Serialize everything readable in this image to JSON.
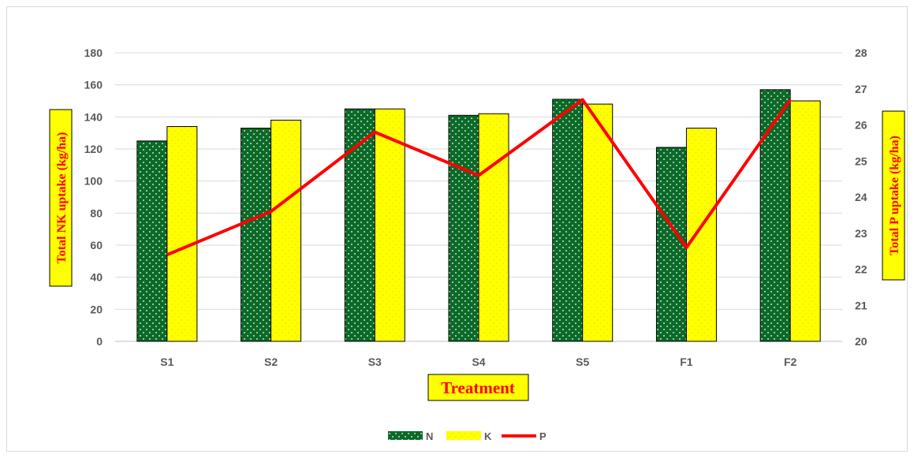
{
  "chart_data": {
    "type": "bar",
    "categories": [
      "S1",
      "S2",
      "S3",
      "S4",
      "S5",
      "F1",
      "F2"
    ],
    "series": [
      {
        "name": "N",
        "type": "bar",
        "axis": "left",
        "color": "#0b6a28",
        "values": [
          125,
          133,
          145,
          141,
          151,
          121,
          157
        ]
      },
      {
        "name": "K",
        "type": "bar",
        "axis": "left",
        "color": "#ffff00",
        "values": [
          134,
          138,
          145,
          142,
          148,
          133,
          150
        ]
      },
      {
        "name": "P",
        "type": "line",
        "axis": "right",
        "color": "#ff0000",
        "values": [
          22.4,
          23.6,
          25.8,
          24.6,
          26.7,
          22.6,
          26.7
        ]
      }
    ],
    "xlabel": "Treatment",
    "ylabel": "Total NK uptake (kg/ha)",
    "y2label": "Total P uptake (kg/ha)",
    "ylim": [
      0,
      180
    ],
    "y2lim": [
      20,
      28
    ],
    "yticks": [
      "0",
      "20",
      "40",
      "60",
      "80",
      "100",
      "120",
      "140",
      "160",
      "180"
    ],
    "y2ticks": [
      "20",
      "21",
      "22",
      "23",
      "24",
      "25",
      "26",
      "27",
      "28"
    ],
    "grid": true,
    "legend": "bottom",
    "label_box_color": "#ffff00",
    "label_text_color": "#ff0000"
  }
}
